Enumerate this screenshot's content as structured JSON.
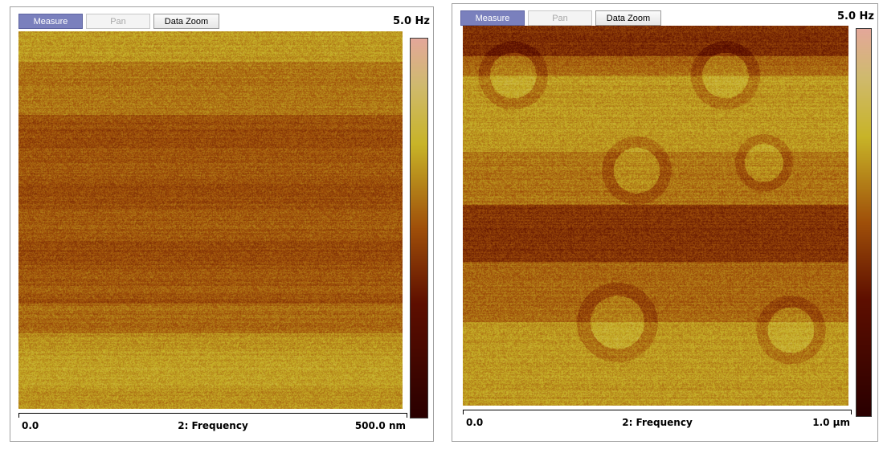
{
  "colors": {
    "measure_active": "#7a80bd",
    "afm_dark": "#5e0f00",
    "afm_mid": "#a0500a",
    "afm_bright": "#c8b428",
    "afm_top": "#e4a89a"
  },
  "icons": {
    "colorbar": "afm-frequency-colorbar"
  },
  "panels": [
    {
      "toolbar": {
        "measure": "Measure",
        "pan": "Pan",
        "zoom": "Data Zoom"
      },
      "scale_max": "5.0 Hz",
      "axis": {
        "start": "0.0",
        "channel": "2: Frequency",
        "end": "500.0 nm"
      }
    },
    {
      "toolbar": {
        "measure": "Measure",
        "pan": "Pan",
        "zoom": "Data Zoom"
      },
      "scale_max": "5.0 Hz",
      "axis": {
        "start": "0.0",
        "channel": "2: Frequency",
        "end": "1.0 µm"
      }
    }
  ]
}
